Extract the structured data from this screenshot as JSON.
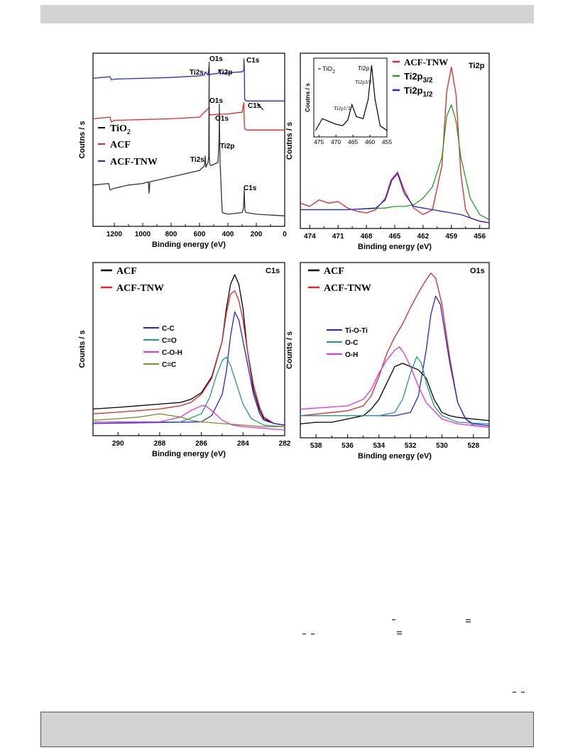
{
  "chart_data": [
    {
      "type": "line",
      "panel": "survey",
      "xlabel": "Binding energy (eV)",
      "ylabel": "Coutns / s",
      "xlim": [
        1350,
        0
      ],
      "xticks": [
        1200,
        1000,
        800,
        600,
        400,
        200,
        0
      ],
      "legend": [
        {
          "label": "TiO",
          "sub": "2",
          "color": "#000000"
        },
        {
          "label": "ACF",
          "sub": "",
          "color": "#e8231f"
        },
        {
          "label": "ACF-TNW",
          "sub": "",
          "color": "#2323e8"
        }
      ],
      "peak_labels": [
        "O1s",
        "Ti2s",
        "Ti2p",
        "C1s",
        "O1s",
        "C1s",
        "O1s",
        "Ti2s",
        "Ti2p",
        "C1s"
      ],
      "series": [
        {
          "name": "ACF-TNW",
          "color": "#2323e8",
          "x": [
            1350,
            1230,
            1220,
            1200,
            1000,
            800,
            600,
            565,
            560,
            540,
            532,
            531,
            520,
            470,
            460,
            455,
            300,
            288,
            287,
            284,
            282,
            270,
            200,
            0
          ],
          "y": [
            0.88,
            0.89,
            0.87,
            0.875,
            0.88,
            0.885,
            0.895,
            0.9,
            0.92,
            0.9,
            0.96,
            0.9,
            0.905,
            0.91,
            0.93,
            0.91,
            0.92,
            0.93,
            1.0,
            0.93,
            0.75,
            0.74,
            0.74,
            0.74
          ]
        },
        {
          "name": "ACF",
          "color": "#e8231f",
          "x": [
            1350,
            1230,
            1220,
            1200,
            1000,
            800,
            600,
            532,
            531,
            520,
            400,
            300,
            287,
            286,
            284,
            282,
            270,
            200,
            0
          ],
          "y": [
            0.63,
            0.64,
            0.61,
            0.62,
            0.625,
            0.63,
            0.64,
            0.7,
            0.65,
            0.655,
            0.66,
            0.67,
            0.73,
            0.66,
            0.6,
            0.57,
            0.56,
            0.56,
            0.56
          ]
        },
        {
          "name": "TiO2",
          "color": "#333333",
          "x": [
            1350,
            1240,
            1230,
            1200,
            1100,
            1000,
            960,
            955,
            950,
            900,
            800,
            700,
            600,
            565,
            560,
            555,
            540,
            535,
            532,
            531,
            528,
            520,
            470,
            462,
            460,
            458,
            455,
            440,
            400,
            300,
            290,
            285,
            280,
            270,
            200,
            0
          ],
          "y": [
            0.22,
            0.23,
            0.19,
            0.2,
            0.22,
            0.23,
            0.24,
            0.17,
            0.24,
            0.25,
            0.27,
            0.29,
            0.31,
            0.34,
            0.4,
            0.33,
            0.36,
            0.4,
            0.98,
            0.4,
            0.35,
            0.34,
            0.36,
            0.5,
            0.72,
            0.5,
            0.36,
            0.05,
            0.04,
            0.05,
            0.08,
            0.19,
            0.06,
            0.05,
            0.04,
            0.03
          ]
        }
      ]
    },
    {
      "type": "line",
      "panel": "Ti2p",
      "xlabel": "Binding energy (eV)",
      "ylabel": "Coutns / s",
      "xlim": [
        475,
        455
      ],
      "xticks": [
        474,
        471,
        468,
        465,
        462,
        459,
        456
      ],
      "panel_label": "Ti2p",
      "legend": [
        {
          "label": "ACF-TNW",
          "sub": "",
          "color": "#e8231f"
        },
        {
          "label": "Ti2p",
          "sub": "3/2",
          "color": "#22a022"
        },
        {
          "label": "Ti2p",
          "sub": "1/2",
          "color": "#2323e8"
        }
      ],
      "inset": {
        "xticks": [
          475,
          470,
          465,
          460,
          455
        ],
        "xlim": [
          476.5,
          455
        ],
        "ylabel": "Coutns / s",
        "legend": "TiO",
        "legend_sub": "2",
        "labels": [
          "Ti2p",
          "Ti2p3/2",
          "Ti2p1/2"
        ],
        "x": [
          476,
          474,
          472,
          470,
          468,
          466.5,
          465.3,
          464,
          462,
          460.5,
          459.5,
          458.5,
          457,
          455
        ],
        "y": [
          0.05,
          0.22,
          0.18,
          0.14,
          0.12,
          0.2,
          0.42,
          0.25,
          0.22,
          0.5,
          0.98,
          0.5,
          0.12,
          0.05
        ]
      },
      "series": [
        {
          "name": "ACF-TNW",
          "color": "#e8231f",
          "x": [
            475,
            474,
            473,
            472,
            471,
            470,
            469,
            468,
            467,
            466,
            465.4,
            464.7,
            464,
            463,
            462,
            461,
            460,
            459.5,
            459,
            458.5,
            458,
            457.5,
            457,
            456,
            455
          ],
          "y": [
            0.12,
            0.1,
            0.14,
            0.12,
            0.13,
            0.09,
            0.07,
            0.06,
            0.08,
            0.15,
            0.26,
            0.31,
            0.2,
            0.09,
            0.05,
            0.08,
            0.35,
            0.8,
            0.95,
            0.78,
            0.3,
            0.08,
            0.03,
            0.01,
            0.0
          ]
        },
        {
          "name": "Ti2p3/2",
          "color": "#22a022",
          "x": [
            475,
            470,
            466,
            465,
            464,
            463,
            462,
            461,
            460,
            459.5,
            459,
            458.5,
            458,
            457,
            456,
            455
          ],
          "y": [
            0.08,
            0.08,
            0.09,
            0.1,
            0.1,
            0.11,
            0.15,
            0.22,
            0.4,
            0.65,
            0.72,
            0.62,
            0.4,
            0.15,
            0.05,
            0.02
          ]
        },
        {
          "name": "Ti2p1/2",
          "color": "#2323e8",
          "x": [
            475,
            470,
            467,
            466,
            465.3,
            464.7,
            464,
            463,
            462,
            461,
            460,
            459,
            458,
            457,
            456,
            455
          ],
          "y": [
            0.08,
            0.08,
            0.09,
            0.14,
            0.26,
            0.3,
            0.18,
            0.1,
            0.09,
            0.08,
            0.07,
            0.06,
            0.05,
            0.03,
            0.01,
            0.0
          ]
        }
      ]
    },
    {
      "type": "line",
      "panel": "C1s",
      "xlabel": "Binding energy (eV)",
      "ylabel": "Counts / s",
      "xlim": [
        291.2,
        282
      ],
      "xticks": [
        290,
        288,
        286,
        284,
        282
      ],
      "panel_label": "C1s",
      "legend": [
        {
          "label": "ACF",
          "sub": "",
          "color": "#000000"
        },
        {
          "label": "ACF-TNW",
          "sub": "",
          "color": "#e8231f"
        }
      ],
      "components_legend": [
        {
          "label": "C-C",
          "color": "#2323e8"
        },
        {
          "label": "C=O",
          "color": "#1f9a8a"
        },
        {
          "label": "C-O-H",
          "color": "#e62fe6"
        },
        {
          "label": "C=C",
          "color": "#8a8a20"
        }
      ],
      "series": [
        {
          "name": "ACF",
          "color": "#000000",
          "x": [
            291.2,
            290,
            289,
            288,
            287,
            286.5,
            286,
            285.5,
            285,
            284.8,
            284.6,
            284.4,
            284.2,
            284,
            283.8,
            283.5,
            283.2,
            283,
            282.5,
            282
          ],
          "y": [
            0.13,
            0.14,
            0.15,
            0.16,
            0.17,
            0.19,
            0.23,
            0.33,
            0.55,
            0.75,
            0.9,
            0.96,
            0.9,
            0.75,
            0.5,
            0.25,
            0.12,
            0.07,
            0.04,
            0.03
          ]
        },
        {
          "name": "ACF-TNW",
          "color": "#e8231f",
          "x": [
            291.2,
            290,
            289,
            288,
            287,
            286.5,
            286,
            285.5,
            285,
            284.8,
            284.6,
            284.4,
            284.2,
            284,
            283.8,
            283.5,
            283.2,
            283,
            282.5,
            282
          ],
          "y": [
            0.1,
            0.11,
            0.12,
            0.13,
            0.15,
            0.17,
            0.22,
            0.32,
            0.55,
            0.72,
            0.84,
            0.86,
            0.8,
            0.68,
            0.5,
            0.28,
            0.14,
            0.08,
            0.04,
            0.03
          ]
        },
        {
          "name": "C-C",
          "color": "#2323e8",
          "x": [
            291.2,
            286,
            285.5,
            285,
            284.8,
            284.6,
            284.4,
            284.2,
            284,
            283.8,
            283.5,
            283.2,
            283,
            282.5,
            282
          ],
          "y": [
            0.04,
            0.05,
            0.09,
            0.22,
            0.36,
            0.58,
            0.73,
            0.68,
            0.55,
            0.42,
            0.22,
            0.1,
            0.06,
            0.04,
            0.03
          ]
        },
        {
          "name": "C=O",
          "color": "#1f9a8a",
          "x": [
            291.2,
            287,
            286,
            285.6,
            285.3,
            285,
            284.8,
            284.6,
            284.3,
            284,
            283.6,
            283,
            282
          ],
          "y": [
            0.05,
            0.05,
            0.1,
            0.2,
            0.33,
            0.43,
            0.45,
            0.4,
            0.28,
            0.16,
            0.07,
            0.03,
            0.02
          ]
        },
        {
          "name": "C-O-H",
          "color": "#e62fe6",
          "x": [
            291.2,
            288,
            287,
            286.5,
            286,
            285.8,
            285.5,
            285,
            284.5,
            284,
            283,
            282
          ],
          "y": [
            0.05,
            0.05,
            0.08,
            0.12,
            0.15,
            0.15,
            0.12,
            0.06,
            0.03,
            0.02,
            0.01,
            0.0
          ]
        },
        {
          "name": "C=C",
          "color": "#8a8a20",
          "x": [
            291.2,
            290,
            289,
            288.5,
            288,
            287.5,
            287,
            286.5,
            286,
            285,
            284,
            283,
            282
          ],
          "y": [
            0.06,
            0.07,
            0.08,
            0.09,
            0.1,
            0.09,
            0.08,
            0.06,
            0.05,
            0.04,
            0.03,
            0.02,
            0.02
          ]
        }
      ]
    },
    {
      "type": "line",
      "panel": "O1s",
      "xlabel": "Binding energy (eV)",
      "ylabel": "Counts / s",
      "xlim": [
        539,
        527
      ],
      "xticks": [
        538,
        536,
        534,
        532,
        530,
        528
      ],
      "panel_label": "O1s",
      "legend": [
        {
          "label": "ACF",
          "sub": "",
          "color": "#000000"
        },
        {
          "label": "ACF-TNW",
          "sub": "",
          "color": "#e8231f"
        }
      ],
      "components_legend": [
        {
          "label": "Ti-O-Ti",
          "color": "#2323e8"
        },
        {
          "label": "O-C",
          "color": "#1f9a8a"
        },
        {
          "label": "O-H",
          "color": "#e62fe6"
        }
      ],
      "series": [
        {
          "name": "ACF",
          "color": "#000000",
          "x": [
            539,
            538,
            537,
            536,
            535,
            534.5,
            534,
            533.5,
            533,
            532.5,
            532,
            531.5,
            531,
            530.5,
            530,
            529.5,
            529,
            528,
            527
          ],
          "y": [
            0.05,
            0.06,
            0.06,
            0.08,
            0.1,
            0.14,
            0.2,
            0.3,
            0.4,
            0.42,
            0.4,
            0.38,
            0.33,
            0.2,
            0.12,
            0.1,
            0.09,
            0.08,
            0.07
          ]
        },
        {
          "name": "ACF-TNW",
          "color": "#e8231f",
          "x": [
            539,
            538,
            537,
            536,
            535,
            534.5,
            534,
            533.5,
            533,
            532.5,
            532,
            531.5,
            531,
            530.7,
            530.4,
            530,
            529.5,
            529,
            528.5,
            528,
            527
          ],
          "y": [
            0.1,
            0.11,
            0.12,
            0.13,
            0.16,
            0.22,
            0.34,
            0.48,
            0.58,
            0.66,
            0.76,
            0.85,
            0.93,
            0.97,
            0.94,
            0.78,
            0.45,
            0.18,
            0.08,
            0.04,
            0.03
          ]
        },
        {
          "name": "Ti-O-Ti",
          "color": "#2323e8",
          "x": [
            539,
            533,
            532,
            531.5,
            531,
            530.7,
            530.4,
            530.1,
            529.8,
            529.5,
            529,
            528.5,
            528,
            527
          ],
          "y": [
            0.1,
            0.1,
            0.12,
            0.22,
            0.5,
            0.72,
            0.83,
            0.78,
            0.6,
            0.42,
            0.18,
            0.08,
            0.05,
            0.04
          ]
        },
        {
          "name": "O-C",
          "color": "#1f9a8a",
          "x": [
            539,
            534,
            533,
            532.5,
            532,
            531.6,
            531.3,
            531,
            530.5,
            530,
            529,
            527
          ],
          "y": [
            0.1,
            0.1,
            0.12,
            0.2,
            0.36,
            0.46,
            0.42,
            0.3,
            0.16,
            0.1,
            0.06,
            0.05
          ]
        },
        {
          "name": "O-H",
          "color": "#e62fe6",
          "x": [
            539,
            536,
            535,
            534.5,
            534,
            533.5,
            533,
            532.7,
            532.4,
            532,
            531.5,
            531,
            530,
            529,
            528,
            527
          ],
          "y": [
            0.14,
            0.16,
            0.2,
            0.26,
            0.36,
            0.44,
            0.5,
            0.52,
            0.48,
            0.4,
            0.28,
            0.18,
            0.08,
            0.05,
            0.04,
            0.03
          ]
        }
      ]
    }
  ]
}
